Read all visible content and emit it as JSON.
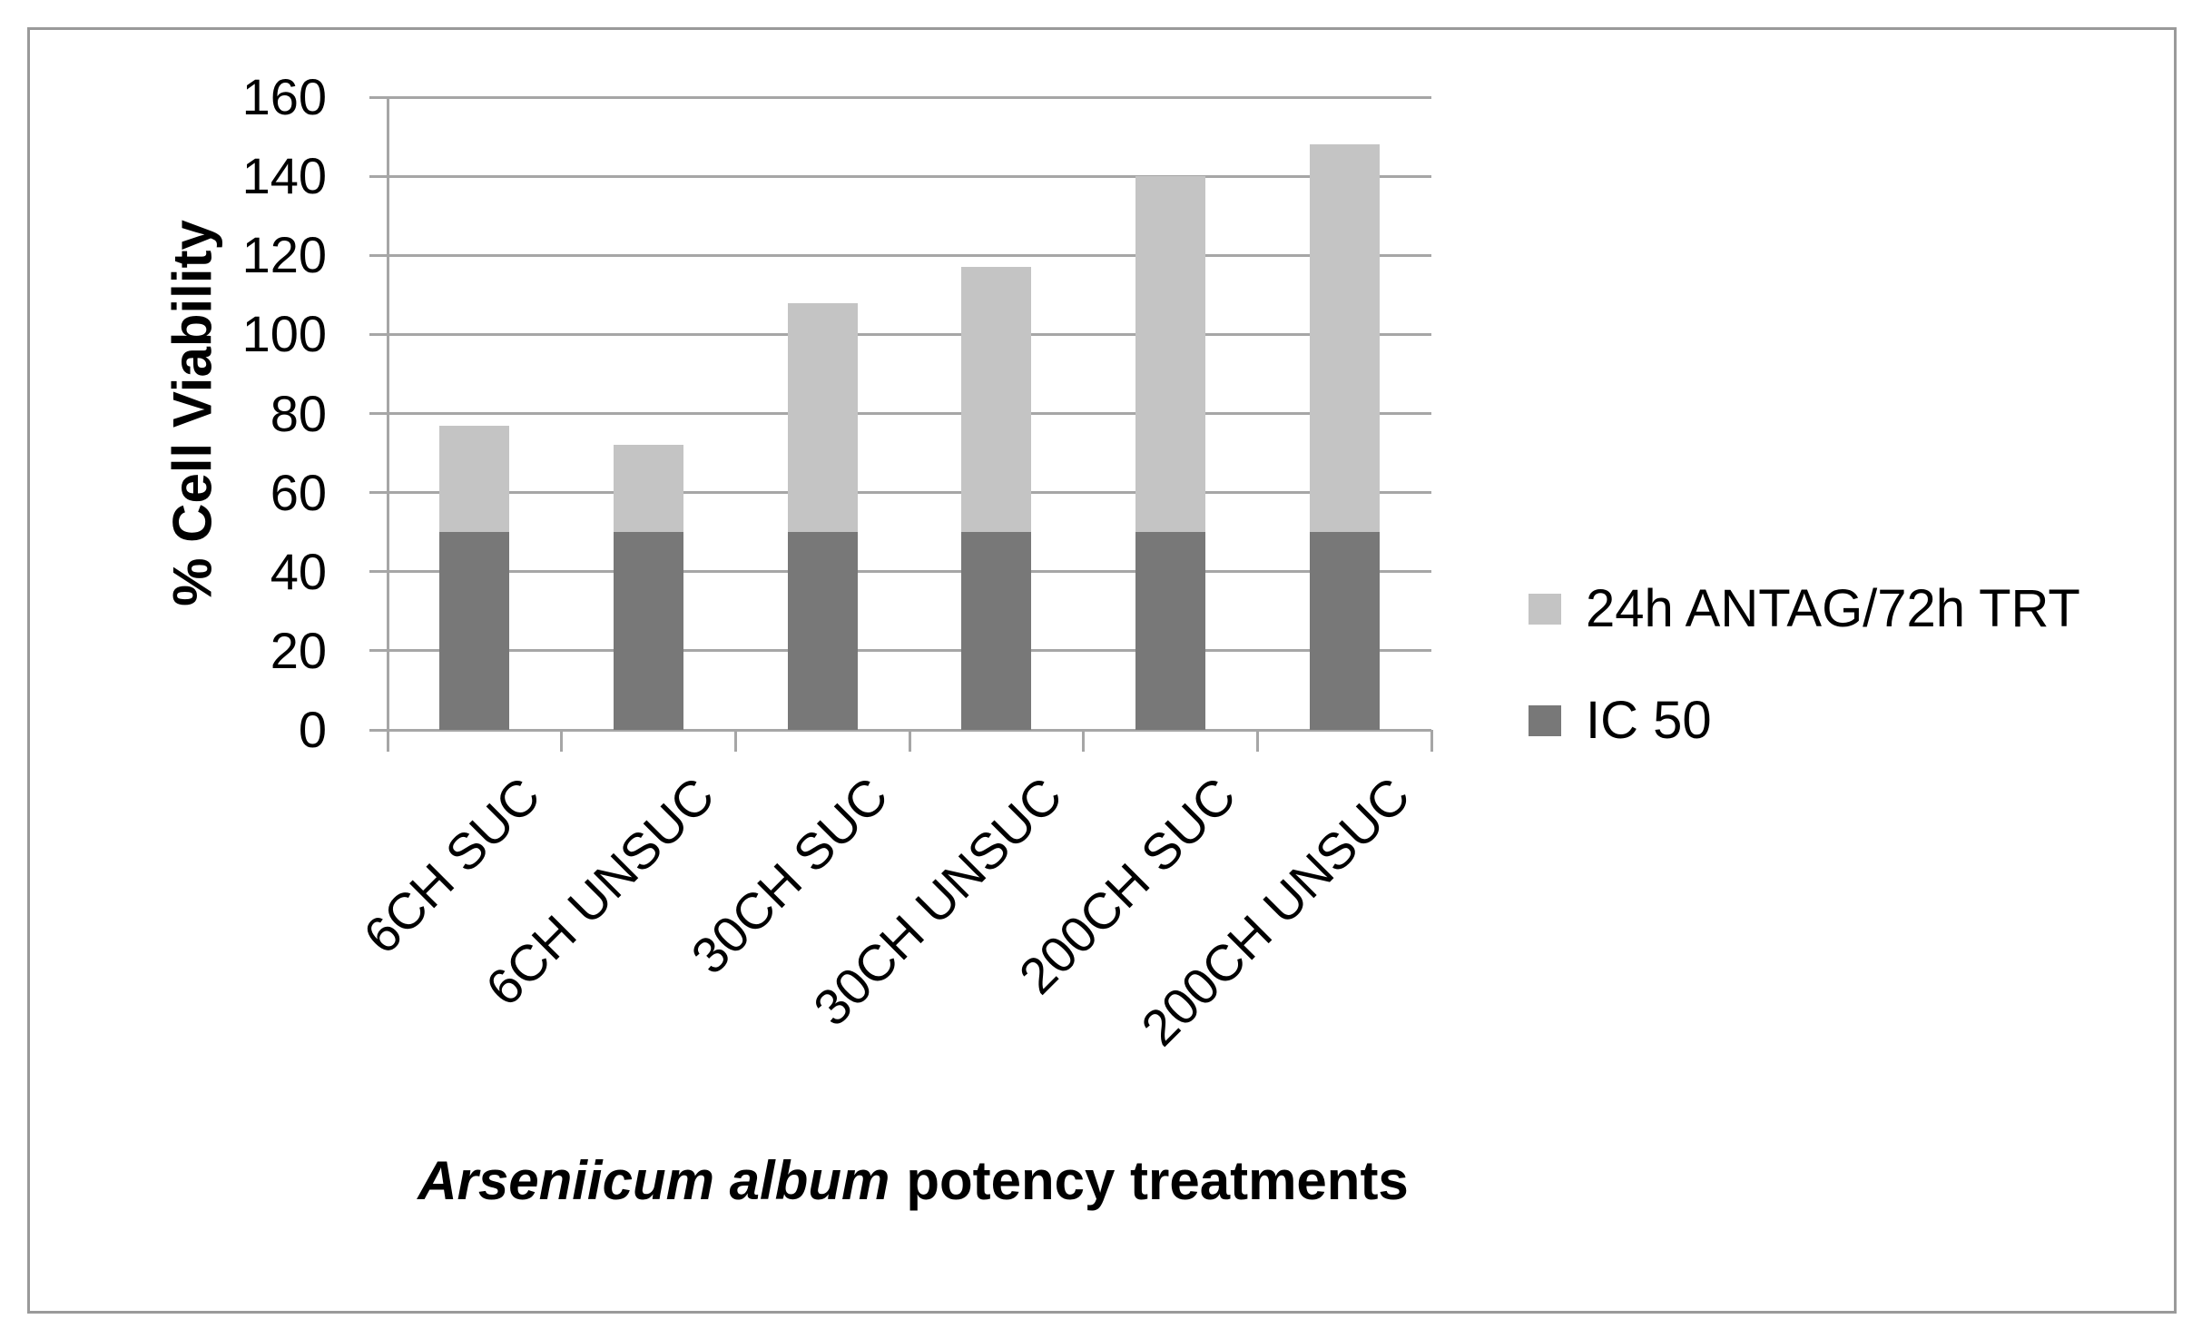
{
  "chart_data": {
    "type": "bar",
    "stacked": true,
    "categories": [
      "6CH SUC",
      "6CH UNSUC",
      "30CH SUC",
      "30CH UNSUC",
      "200CH SUC",
      "200CH UNSUC"
    ],
    "series": [
      {
        "name": "IC 50",
        "color": "#787878",
        "values": [
          50,
          50,
          50,
          50,
          50,
          50
        ]
      },
      {
        "name": "24h ANTAG/72h TRT",
        "color": "#C4C4C4",
        "values": [
          27,
          22,
          58,
          67,
          90,
          98
        ]
      }
    ],
    "stack_totals": [
      77,
      72,
      108,
      117,
      140,
      148
    ],
    "ylabel": "% Cell Viability",
    "xlabel_italic": "Arseniicum album",
    "xlabel_regular": "potency treatments",
    "ylim": [
      0,
      160
    ],
    "ytick_step": 20,
    "ytick_labels": [
      "0",
      "20",
      "40",
      "60",
      "80",
      "100",
      "120",
      "140",
      "160"
    ],
    "grid": true,
    "legend": {
      "position": "right",
      "entries": [
        {
          "label": "24h ANTAG/72h TRT",
          "color": "#C4C4C4"
        },
        {
          "label": "IC 50",
          "color": "#787878"
        }
      ]
    },
    "colors": {
      "gridline": "#A6A6A6",
      "axis": "#A6A6A6",
      "frame": "#9A9A9A",
      "text": "#000000"
    }
  }
}
